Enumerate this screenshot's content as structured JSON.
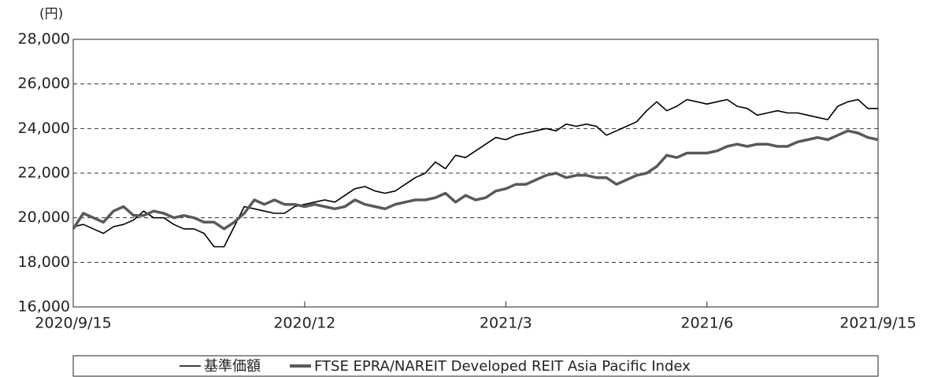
{
  "chart_data": {
    "type": "line",
    "y_axis_label": "(円)",
    "categories": [
      "2020/9/15",
      null,
      null,
      null,
      null,
      null,
      null,
      null,
      null,
      null,
      null,
      null,
      null,
      null,
      null,
      null,
      null,
      null,
      null,
      null,
      null,
      null,
      null,
      "2020/12",
      null,
      null,
      null,
      null,
      null,
      null,
      null,
      null,
      null,
      null,
      null,
      null,
      null,
      null,
      null,
      null,
      null,
      null,
      null,
      "2021/3",
      null,
      null,
      null,
      null,
      null,
      null,
      null,
      null,
      null,
      null,
      null,
      null,
      null,
      null,
      null,
      null,
      null,
      null,
      null,
      "2021/6",
      null,
      null,
      null,
      null,
      null,
      null,
      null,
      null,
      null,
      null,
      null,
      null,
      null,
      null,
      null,
      null,
      "2021/9/15"
    ],
    "series": [
      {
        "name": "基準価額",
        "color": "#000000",
        "values": [
          19600,
          19700,
          19500,
          19300,
          19600,
          19700,
          19900,
          20300,
          20000,
          20000,
          19700,
          19500,
          19500,
          19300,
          18700,
          18700,
          19600,
          20500,
          20400,
          20300,
          20200,
          20200,
          20500,
          20600,
          20700,
          20800,
          20700,
          21000,
          21300,
          21400,
          21200,
          21100,
          21200,
          21500,
          21800,
          22000,
          22500,
          22200,
          22800,
          22700,
          23000,
          23300,
          23600,
          23500,
          23700,
          23800,
          23900,
          24000,
          23900,
          24200,
          24100,
          24200,
          24100,
          23700,
          23900,
          24100,
          24300,
          24800,
          25200,
          24800,
          25000,
          25300,
          25200,
          25100,
          25200,
          25300,
          25000,
          24900,
          24600,
          24700,
          24800,
          24700,
          24700,
          24600,
          24500,
          24400,
          25000,
          25200,
          25300,
          24900,
          24900
        ]
      },
      {
        "name": "FTSE EPRA/NAREIT Developed REIT Asia Pacific Index",
        "color": "#595959",
        "values": [
          19500,
          20200,
          20000,
          19800,
          20300,
          20500,
          20100,
          20100,
          20300,
          20200,
          20000,
          20100,
          20000,
          19800,
          19800,
          19500,
          19800,
          20200,
          20800,
          20600,
          20800,
          20600,
          20600,
          20500,
          20600,
          20500,
          20400,
          20500,
          20800,
          20600,
          20500,
          20400,
          20600,
          20700,
          20800,
          20800,
          20900,
          21100,
          20700,
          21000,
          20800,
          20900,
          21200,
          21300,
          21500,
          21500,
          21700,
          21900,
          22000,
          21800,
          21900,
          21900,
          21800,
          21800,
          21500,
          21700,
          21900,
          22000,
          22300,
          22800,
          22700,
          22900,
          22900,
          22900,
          23000,
          23200,
          23300,
          23200,
          23300,
          23300,
          23200,
          23200,
          23400,
          23500,
          23600,
          23500,
          23700,
          23900,
          23800,
          23600,
          23500
        ]
      }
    ],
    "ylim": [
      16000,
      28000
    ],
    "yticks": [
      {
        "value": 16000,
        "label": "16,000"
      },
      {
        "value": 18000,
        "label": "18,000"
      },
      {
        "value": 20000,
        "label": "20,000"
      },
      {
        "value": 22000,
        "label": "22,000"
      },
      {
        "value": 24000,
        "label": "24,000"
      },
      {
        "value": 26000,
        "label": "26,000"
      },
      {
        "value": 28000,
        "label": "28,000"
      }
    ],
    "grid": true
  }
}
